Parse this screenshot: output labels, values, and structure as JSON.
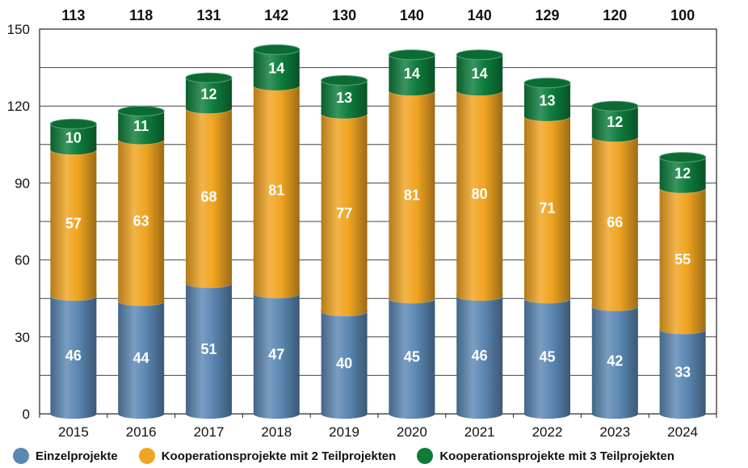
{
  "chart_data": {
    "type": "bar",
    "stacked": true,
    "categories": [
      "2015",
      "2016",
      "2017",
      "2018",
      "2019",
      "2020",
      "2021",
      "2022",
      "2023",
      "2024"
    ],
    "series": [
      {
        "name": "Einzelprojekte",
        "color": "#5b87b3",
        "values": [
          46,
          44,
          51,
          47,
          40,
          45,
          46,
          45,
          42,
          33
        ]
      },
      {
        "name": "Kooperationsprojekte mit 2 Teilprojekten",
        "color": "#f0a421",
        "values": [
          57,
          63,
          68,
          81,
          77,
          81,
          80,
          71,
          66,
          55
        ]
      },
      {
        "name": "Kooperationsprojekte mit 3 Teilprojekten",
        "color": "#0e7d3c",
        "values": [
          10,
          11,
          12,
          14,
          13,
          14,
          14,
          13,
          12,
          12
        ]
      }
    ],
    "totals": [
      113,
      118,
      131,
      142,
      130,
      140,
      140,
      129,
      120,
      100
    ],
    "ylim": [
      0,
      150
    ],
    "yticks": [
      0,
      30,
      60,
      90,
      120,
      150
    ],
    "grid": true,
    "legend_position": "bottom",
    "xlabel": "",
    "ylabel": ""
  }
}
